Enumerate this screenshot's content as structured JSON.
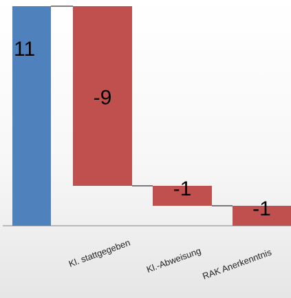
{
  "chart_data": {
    "type": "bar",
    "subtype": "waterfall",
    "title": "",
    "xlabel": "",
    "ylabel": "",
    "grid": false,
    "legend": "none",
    "bars": [
      {
        "label": "",
        "start": 0,
        "end": 11,
        "display": "11",
        "color": "#4f81bd"
      },
      {
        "label": "Kl. stattgegeben",
        "start": 11,
        "end": 2,
        "display": "-9",
        "color": "#c0504d"
      },
      {
        "label": "Kl.-Abweisung",
        "start": 2,
        "end": 1,
        "display": "-1",
        "color": "#c0504d"
      },
      {
        "label": "RAK Anerkenntnis",
        "start": 1,
        "end": 0,
        "display": "-1",
        "color": "#c0504d"
      }
    ],
    "baseline_value": 0,
    "colors": {
      "positive": "#4f81bd",
      "negative": "#c0504d",
      "connector": "#000000",
      "axis": "#a6a6a6"
    }
  }
}
